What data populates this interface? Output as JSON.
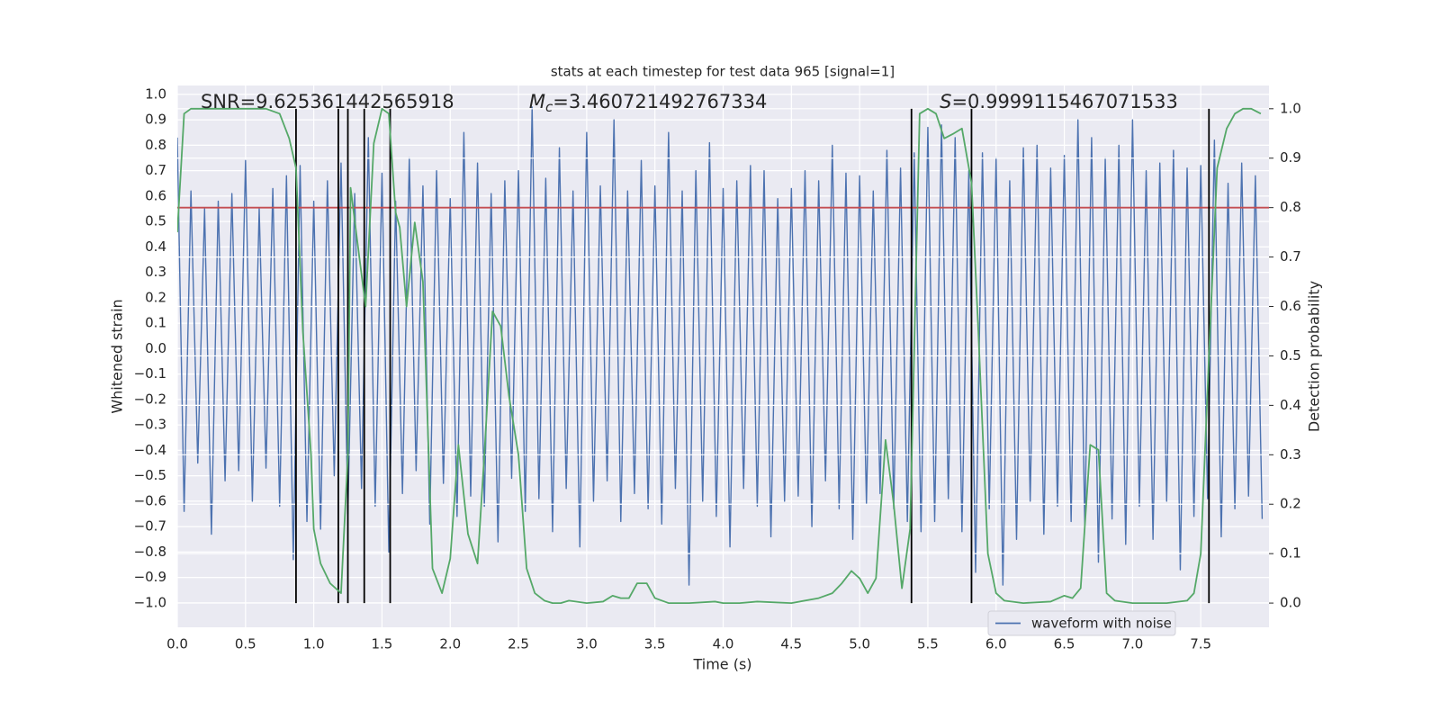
{
  "chart_data": {
    "type": "line",
    "title": "stats at each timestep for test data 965 [signal=1]",
    "xlabel": "Time (s)",
    "ylabel": "Whitened strain",
    "y2label": "Detection probability",
    "annotations": [
      {
        "value_text": "SNR=9.625361442565918"
      },
      {
        "symbol": "M",
        "subscript": "c",
        "value_text": "=3.460721492767334"
      },
      {
        "symbol": "S",
        "value_text": "=0.9999115467071533"
      }
    ],
    "xlim": [
      0,
      8
    ],
    "xticks": [
      {
        "value": 0,
        "label": "0.0"
      },
      0.5,
      {
        "value": 1,
        "label": "1.0"
      },
      1.5,
      {
        "value": 2,
        "label": "2.0"
      },
      2.5,
      {
        "value": 3,
        "label": "3.0"
      },
      3.5,
      {
        "value": 4,
        "label": "4.0"
      },
      4.5,
      {
        "value": 5,
        "label": "5.0"
      },
      5.5,
      {
        "value": 6,
        "label": "6.0"
      },
      6.5,
      {
        "value": 7,
        "label": "7.0"
      },
      7.5
    ],
    "ylim": [
      -1.096,
      1.035
    ],
    "yticks": [
      {
        "value": -1,
        "label": "−1.0"
      },
      {
        "value": -0.9,
        "label": "−0.9"
      },
      {
        "value": -0.8,
        "label": "−0.8"
      },
      {
        "value": -0.7,
        "label": "−0.7"
      },
      {
        "value": -0.6,
        "label": "−0.6"
      },
      {
        "value": -0.5,
        "label": "−0.5"
      },
      {
        "value": -0.4,
        "label": "−0.4"
      },
      {
        "value": -0.3,
        "label": "−0.3"
      },
      {
        "value": -0.2,
        "label": "−0.2"
      },
      {
        "value": -0.1,
        "label": "−0.1"
      },
      {
        "value": 0,
        "label": "0.0"
      },
      0.1,
      0.2,
      0.3,
      0.4,
      0.5,
      0.6,
      0.7,
      0.8,
      0.9,
      {
        "value": 1,
        "label": "1.0"
      }
    ],
    "y2lim": [
      -0.049,
      1.047
    ],
    "y2ticks": [
      {
        "value": 0,
        "label": "0.0"
      },
      0.1,
      0.2,
      0.3,
      0.4,
      0.5,
      0.6,
      0.7,
      0.8,
      0.9,
      {
        "value": 1,
        "label": "1.0"
      }
    ],
    "grid": true,
    "legend": "lower right",
    "threshold": {
      "value": 0.8,
      "axis": "y2",
      "color": "#c44e52"
    },
    "markers": {
      "x": [
        0.87,
        1.18,
        1.25,
        1.37,
        1.56,
        5.38,
        5.82,
        7.56
      ],
      "span": [
        0,
        1
      ],
      "axis": "y2",
      "color": "#000000"
    },
    "series": [
      {
        "name": "waveform with noise",
        "color": "#4c72b0",
        "x": [
          0,
          0.05,
          0.1,
          0.15,
          0.2,
          0.25,
          0.3,
          0.35,
          0.4,
          0.45,
          0.5,
          0.55,
          0.6,
          0.65,
          0.7,
          0.75,
          0.8,
          0.85,
          0.9,
          0.95,
          1,
          1.05,
          1.1,
          1.15,
          1.2,
          1.25,
          1.3,
          1.35,
          1.4,
          1.45,
          1.5,
          1.55,
          1.6,
          1.65,
          1.7,
          1.75,
          1.8,
          1.85,
          1.9,
          1.95,
          2,
          2.05,
          2.1,
          2.15,
          2.2,
          2.25,
          2.3,
          2.35,
          2.4,
          2.45,
          2.5,
          2.55,
          2.6,
          2.65,
          2.7,
          2.75,
          2.8,
          2.85,
          2.9,
          2.95,
          3,
          3.05,
          3.1,
          3.15,
          3.2,
          3.25,
          3.3,
          3.35,
          3.4,
          3.45,
          3.5,
          3.55,
          3.6,
          3.65,
          3.7,
          3.75,
          3.8,
          3.85,
          3.9,
          3.95,
          4,
          4.05,
          4.1,
          4.15,
          4.2,
          4.25,
          4.3,
          4.35,
          4.4,
          4.45,
          4.5,
          4.55,
          4.6,
          4.65,
          4.7,
          4.75,
          4.8,
          4.85,
          4.9,
          4.95,
          5,
          5.05,
          5.1,
          5.15,
          5.2,
          5.25,
          5.3,
          5.35,
          5.4,
          5.45,
          5.5,
          5.55,
          5.6,
          5.65,
          5.7,
          5.75,
          5.8,
          5.85,
          5.9,
          5.95,
          6,
          6.05,
          6.1,
          6.15,
          6.2,
          6.25,
          6.3,
          6.35,
          6.4,
          6.45,
          6.5,
          6.55,
          6.6,
          6.65,
          6.7,
          6.75,
          6.8,
          6.85,
          6.9,
          6.95,
          7,
          7.05,
          7.1,
          7.15,
          7.2,
          7.25,
          7.3,
          7.35,
          7.4,
          7.45,
          7.5,
          7.55,
          7.6,
          7.65,
          7.7,
          7.75,
          7.8,
          7.85,
          7.9,
          7.95
        ],
        "values": [
          0.83,
          -0.64,
          0.62,
          -0.45,
          0.55,
          -0.73,
          0.58,
          -0.52,
          0.61,
          -0.48,
          0.74,
          -0.6,
          0.55,
          -0.47,
          0.63,
          -0.62,
          0.68,
          -0.83,
          0.72,
          -0.68,
          0.58,
          -0.71,
          0.66,
          -0.5,
          0.73,
          -0.65,
          0.61,
          -0.55,
          0.83,
          -0.62,
          0.69,
          -0.8,
          0.58,
          -0.57,
          0.75,
          -0.48,
          0.64,
          -0.69,
          0.7,
          -0.53,
          0.59,
          -0.66,
          0.85,
          -0.58,
          0.73,
          -0.62,
          0.61,
          -0.76,
          0.66,
          -0.51,
          0.7,
          -0.64,
          0.95,
          -0.59,
          0.67,
          -0.72,
          0.79,
          -0.55,
          0.62,
          -0.78,
          0.85,
          -0.6,
          0.64,
          -0.52,
          0.9,
          -0.68,
          0.62,
          -0.57,
          0.74,
          -0.63,
          0.64,
          -0.69,
          0.85,
          -0.55,
          0.62,
          -0.93,
          0.7,
          -0.6,
          0.81,
          -0.66,
          0.63,
          -0.78,
          0.66,
          -0.55,
          0.72,
          -0.62,
          0.7,
          -0.74,
          0.59,
          -0.6,
          0.63,
          -0.58,
          0.7,
          -0.7,
          0.66,
          -0.52,
          0.8,
          -0.63,
          0.69,
          -0.75,
          0.68,
          -0.61,
          0.62,
          -0.57,
          0.78,
          -0.63,
          0.71,
          -0.68,
          0.77,
          -0.72,
          0.87,
          -0.68,
          0.88,
          -0.59,
          0.83,
          -0.72,
          0.7,
          -0.88,
          0.77,
          -0.63,
          0.75,
          -0.93,
          0.66,
          -0.75,
          0.79,
          -0.6,
          0.8,
          -0.73,
          0.71,
          -0.62,
          0.76,
          -0.68,
          0.9,
          -0.7,
          0.83,
          -0.84,
          0.75,
          -0.67,
          0.8,
          -0.77,
          0.9,
          -0.62,
          0.7,
          -0.75,
          0.73,
          -0.6,
          0.78,
          -0.87,
          0.71,
          -0.66,
          0.72,
          -0.59,
          0.82,
          -0.74,
          0.65,
          -0.63,
          0.73,
          -0.58,
          0.68,
          -0.67
        ]
      },
      {
        "color": "#55a868",
        "axis": "y2",
        "x": [
          0,
          0.05,
          0.1,
          0.3,
          0.5,
          0.65,
          0.75,
          0.82,
          0.87,
          0.92,
          0.98,
          1.0,
          1.05,
          1.12,
          1.2,
          1.25,
          1.27,
          1.32,
          1.38,
          1.44,
          1.5,
          1.55,
          1.6,
          1.63,
          1.68,
          1.74,
          1.8,
          1.87,
          1.94,
          2.0,
          2.06,
          2.13,
          2.2,
          2.25,
          2.31,
          2.37,
          2.43,
          2.5,
          2.56,
          2.62,
          2.69,
          2.75,
          2.81,
          2.87,
          3.0,
          3.12,
          3.19,
          3.25,
          3.31,
          3.37,
          3.44,
          3.5,
          3.6,
          3.75,
          3.94,
          4.0,
          4.12,
          4.25,
          4.5,
          4.7,
          4.8,
          4.87,
          4.94,
          5.0,
          5.06,
          5.12,
          5.19,
          5.25,
          5.31,
          5.37,
          5.44,
          5.5,
          5.56,
          5.62,
          5.69,
          5.75,
          5.82,
          5.87,
          5.94,
          6.0,
          6.06,
          6.2,
          6.4,
          6.5,
          6.56,
          6.62,
          6.69,
          6.75,
          6.81,
          6.87,
          7.0,
          7.25,
          7.4,
          7.45,
          7.5,
          7.56,
          7.62,
          7.69,
          7.75,
          7.81,
          7.87,
          7.94
        ],
        "values": [
          0.75,
          0.99,
          1.0,
          1.0,
          1.0,
          1.0,
          0.99,
          0.94,
          0.88,
          0.55,
          0.3,
          0.15,
          0.08,
          0.04,
          0.02,
          0.3,
          0.84,
          0.73,
          0.6,
          0.93,
          1.0,
          0.99,
          0.79,
          0.76,
          0.6,
          0.77,
          0.65,
          0.07,
          0.02,
          0.09,
          0.32,
          0.14,
          0.08,
          0.3,
          0.59,
          0.56,
          0.42,
          0.3,
          0.07,
          0.02,
          0.005,
          0.0,
          0.0,
          0.005,
          0.0,
          0.003,
          0.015,
          0.01,
          0.01,
          0.04,
          0.04,
          0.01,
          0.0,
          0.0,
          0.003,
          0.0,
          0.0,
          0.003,
          0.0,
          0.01,
          0.02,
          0.04,
          0.065,
          0.05,
          0.02,
          0.05,
          0.33,
          0.2,
          0.03,
          0.15,
          0.99,
          1.0,
          0.99,
          0.94,
          0.95,
          0.96,
          0.85,
          0.55,
          0.1,
          0.02,
          0.005,
          0.0,
          0.003,
          0.015,
          0.01,
          0.03,
          0.32,
          0.31,
          0.02,
          0.005,
          0.0,
          0.0,
          0.005,
          0.02,
          0.1,
          0.5,
          0.88,
          0.96,
          0.99,
          1.0,
          1.0,
          0.99
        ]
      }
    ]
  }
}
